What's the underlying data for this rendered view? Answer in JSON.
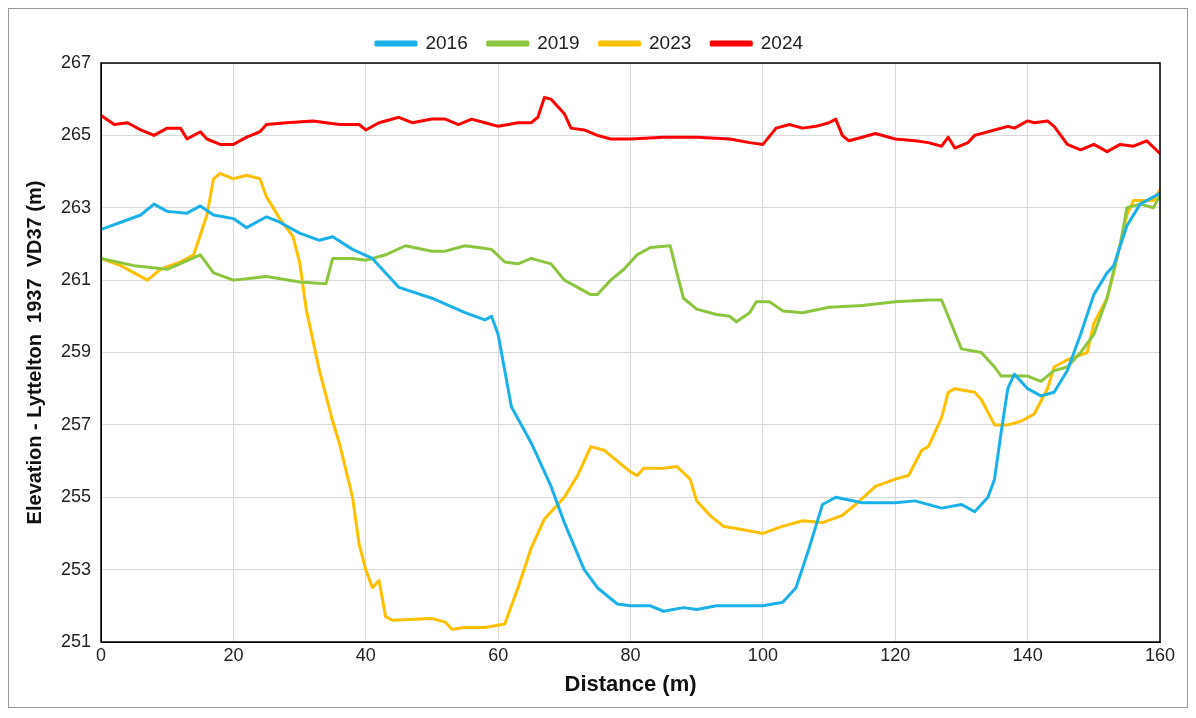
{
  "chart_data": {
    "type": "line",
    "xlabel": "Distance (m)",
    "ylabel": "Elevation - Lyttelton  1937  VD37 (m)",
    "xlim": [
      0,
      160
    ],
    "xticks": [
      0,
      20,
      40,
      60,
      80,
      100,
      120,
      140,
      160
    ],
    "ylim": [
      251,
      267
    ],
    "yticks": [
      251,
      253,
      255,
      257,
      259,
      261,
      263,
      265,
      267
    ],
    "grid": true,
    "legend": "top",
    "marker": "none",
    "line_style": "solid",
    "series": [
      {
        "name": "2016",
        "color": "#1ab0e8",
        "x": [
          0,
          3,
          6,
          8,
          10,
          13,
          15,
          17,
          20,
          22,
          25,
          27,
          30,
          33,
          35,
          38,
          41,
          43,
          45,
          50,
          55,
          58,
          59,
          60,
          61,
          62,
          65,
          68,
          70,
          73,
          75,
          78,
          80,
          83,
          85,
          88,
          90,
          93,
          100,
          103,
          105,
          107,
          109,
          111,
          115,
          120,
          123,
          127,
          130,
          132,
          134,
          135,
          136,
          137,
          138,
          140,
          142,
          144,
          146,
          148,
          150,
          152,
          153,
          155,
          157,
          160
        ],
        "values": [
          262.4,
          262.6,
          262.8,
          263.1,
          262.9,
          262.85,
          263.05,
          262.8,
          262.7,
          262.45,
          262.75,
          262.6,
          262.3,
          262.1,
          262.2,
          261.85,
          261.6,
          261.2,
          260.8,
          260.5,
          260.1,
          259.9,
          260,
          259.5,
          258.5,
          257.5,
          256.5,
          255.3,
          254.3,
          253,
          252.5,
          252.05,
          252,
          252,
          251.85,
          251.95,
          251.9,
          252,
          252,
          252.1,
          252.5,
          253.6,
          254.8,
          255,
          254.85,
          254.85,
          254.9,
          254.7,
          254.8,
          254.6,
          255,
          255.5,
          256.8,
          258,
          258.4,
          258,
          257.8,
          257.9,
          258.5,
          259.5,
          260.6,
          261.2,
          261.4,
          262.5,
          263.1,
          263.4
        ]
      },
      {
        "name": "2019",
        "color": "#8cc63f",
        "x": [
          0,
          5,
          10,
          15,
          17,
          20,
          25,
          30,
          34,
          35,
          38,
          40,
          43,
          46,
          50,
          52,
          55,
          57,
          59,
          61,
          63,
          65,
          68,
          70,
          72,
          74,
          75,
          77,
          79,
          81,
          83,
          86,
          87,
          88,
          90,
          93,
          95,
          96,
          98,
          99,
          101,
          103,
          106,
          110,
          115,
          120,
          125,
          127,
          130,
          133,
          135,
          136,
          140,
          142,
          144,
          146,
          148,
          150,
          152,
          154,
          155,
          157,
          159,
          160
        ],
        "values": [
          261.6,
          261.4,
          261.3,
          261.7,
          261.2,
          261,
          261.1,
          260.95,
          260.9,
          261.6,
          261.6,
          261.55,
          261.7,
          261.95,
          261.8,
          261.8,
          261.95,
          261.9,
          261.85,
          261.5,
          261.45,
          261.6,
          261.45,
          261,
          260.8,
          260.6,
          260.6,
          261,
          261.3,
          261.7,
          261.9,
          261.95,
          261.2,
          260.5,
          260.2,
          260.05,
          260,
          259.85,
          260.1,
          260.4,
          260.4,
          260.15,
          260.1,
          260.25,
          260.3,
          260.4,
          260.45,
          260.45,
          259.1,
          259,
          258.6,
          258.35,
          258.35,
          258.2,
          258.5,
          258.6,
          259,
          259.5,
          260.5,
          262,
          263,
          263.1,
          263,
          263.35
        ]
      },
      {
        "name": "2023",
        "color": "#ffc000",
        "x": [
          0,
          3,
          5,
          7,
          9,
          12,
          14,
          16,
          17,
          18,
          20,
          22,
          24,
          25,
          27,
          29,
          30,
          31,
          33,
          35,
          36,
          38,
          39,
          40,
          41,
          42,
          43,
          44,
          50,
          52,
          53,
          55,
          58,
          61,
          63,
          65,
          67,
          70,
          72,
          74,
          76,
          78,
          80,
          81,
          82,
          85,
          87,
          89,
          90,
          92,
          94,
          97,
          100,
          103,
          106,
          109,
          112,
          114,
          117,
          120,
          122,
          124,
          125,
          127,
          128,
          129,
          132,
          133,
          135,
          137,
          139,
          141,
          143,
          144,
          146,
          149,
          150,
          152,
          153,
          155,
          156,
          159,
          160
        ],
        "values": [
          261.6,
          261.4,
          261.2,
          261,
          261.3,
          261.5,
          261.7,
          262.8,
          263.8,
          263.95,
          263.8,
          263.9,
          263.8,
          263.3,
          262.7,
          262.2,
          261.5,
          260.2,
          258.5,
          257.1,
          256.5,
          255,
          253.7,
          253,
          252.5,
          252.7,
          251.7,
          251.6,
          251.65,
          251.55,
          251.35,
          251.4,
          251.4,
          251.5,
          252.5,
          253.6,
          254.4,
          255,
          255.6,
          256.4,
          256.3,
          256,
          255.7,
          255.6,
          255.8,
          255.8,
          255.85,
          255.5,
          254.9,
          254.5,
          254.2,
          254.1,
          254,
          254.2,
          254.35,
          254.3,
          254.5,
          254.8,
          255.3,
          255.5,
          255.6,
          256.3,
          256.4,
          257.2,
          257.9,
          258,
          257.9,
          257.7,
          257,
          257,
          257.1,
          257.3,
          258,
          258.6,
          258.8,
          259,
          259.8,
          260.5,
          261.2,
          262.8,
          263.2,
          263.2,
          263.5
        ]
      },
      {
        "name": "2024",
        "color": "#ff0000",
        "x": [
          0,
          2,
          4,
          6,
          8,
          10,
          12,
          13,
          15,
          16,
          18,
          20,
          22,
          24,
          25,
          28,
          32,
          36,
          39,
          40,
          42,
          45,
          47,
          50,
          52,
          54,
          56,
          58,
          60,
          63,
          65,
          66,
          67,
          68,
          70,
          71,
          73,
          75,
          77,
          80,
          85,
          90,
          95,
          98,
          100,
          102,
          104,
          106,
          108,
          110,
          111,
          112,
          113,
          115,
          117,
          120,
          123,
          125,
          127,
          128,
          129,
          131,
          132,
          135,
          137,
          138,
          140,
          141,
          143,
          144,
          146,
          148,
          150,
          152,
          154,
          156,
          158,
          160
        ],
        "values": [
          265.55,
          265.3,
          265.35,
          265.15,
          265,
          265.2,
          265.2,
          264.9,
          265.1,
          264.9,
          264.75,
          264.75,
          264.95,
          265.1,
          265.3,
          265.35,
          265.4,
          265.3,
          265.3,
          265.15,
          265.35,
          265.5,
          265.35,
          265.45,
          265.45,
          265.3,
          265.45,
          265.35,
          265.25,
          265.35,
          265.35,
          265.5,
          266.05,
          266,
          265.6,
          265.2,
          265.15,
          265,
          264.9,
          264.9,
          264.95,
          264.95,
          264.9,
          264.8,
          264.75,
          265.2,
          265.3,
          265.2,
          265.25,
          265.35,
          265.45,
          265,
          264.85,
          264.95,
          265.05,
          264.9,
          264.85,
          264.8,
          264.7,
          264.95,
          264.65,
          264.8,
          265,
          265.15,
          265.25,
          265.2,
          265.4,
          265.35,
          265.4,
          265.25,
          264.75,
          264.6,
          264.75,
          264.55,
          264.75,
          264.7,
          264.85,
          264.5
        ]
      }
    ]
  }
}
